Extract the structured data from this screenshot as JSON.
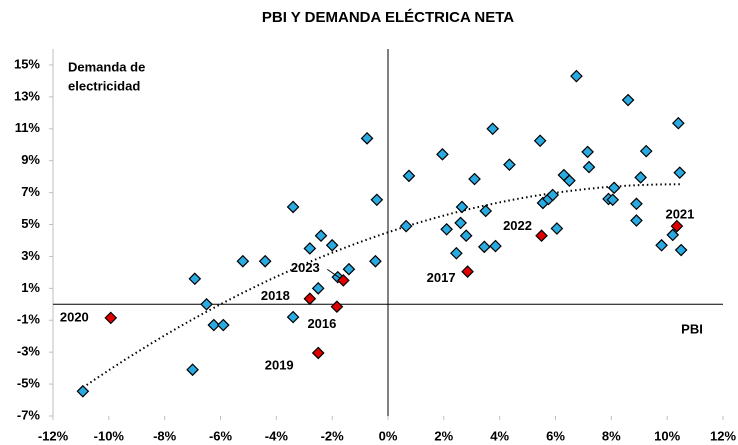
{
  "chart_data": {
    "type": "scatter",
    "title": "PBI Y DEMANDA ELÉCTRICA NETA",
    "xlabel": "PBI",
    "ylabel": [
      "Demanda de",
      "electricidad"
    ],
    "xlim": [
      -12,
      12
    ],
    "xticks": [
      {
        "value": -12,
        "label": "-12%"
      },
      {
        "value": -10,
        "label": "-10%"
      },
      {
        "value": -8,
        "label": "-8%"
      },
      {
        "value": -6,
        "label": "-6%"
      },
      {
        "value": -4,
        "label": "-4%"
      },
      {
        "value": -2,
        "label": "-2%"
      },
      {
        "value": 0,
        "label": "0%"
      },
      {
        "value": 2,
        "label": "2%"
      },
      {
        "value": 4,
        "label": "4%"
      },
      {
        "value": 6,
        "label": "6%"
      },
      {
        "value": 8,
        "label": "8%"
      },
      {
        "value": 10,
        "label": "10%"
      },
      {
        "value": 12,
        "label": "12%"
      }
    ],
    "ylim": [
      -7,
      16
    ],
    "yticks": [
      {
        "value": -7,
        "label": "-7%"
      },
      {
        "value": -5,
        "label": "-5%"
      },
      {
        "value": -3,
        "label": "-3%"
      },
      {
        "value": -1,
        "label": "-1%"
      },
      {
        "value": 1,
        "label": "1%"
      },
      {
        "value": 3,
        "label": "3%"
      },
      {
        "value": 5,
        "label": "5%"
      },
      {
        "value": 7,
        "label": "7%"
      },
      {
        "value": 9,
        "label": "9%"
      },
      {
        "value": 11,
        "label": "11%"
      },
      {
        "value": 13,
        "label": "13%"
      },
      {
        "value": 15,
        "label": "15%"
      }
    ],
    "series": [
      {
        "color": "#29abe2",
        "x": [
          -10.93,
          -6.92,
          -7.0,
          -6.5,
          -6.24,
          -5.9,
          -5.2,
          -4.4,
          -3.4,
          -3.4,
          -2.8,
          -2.4,
          -2.5,
          -2.0,
          -1.8,
          -1.4,
          -0.75,
          -0.4,
          -0.45,
          0.65,
          0.75,
          1.95,
          2.1,
          2.45,
          2.6,
          2.65,
          2.8,
          3.1,
          3.45,
          3.5,
          3.75,
          3.85,
          4.35,
          5.45,
          5.55,
          5.75,
          5.9,
          6.05,
          6.3,
          6.5,
          6.75,
          7.15,
          7.2,
          7.9,
          8.05,
          8.1,
          8.6,
          8.9,
          8.9,
          9.05,
          9.25,
          9.8,
          10.2,
          10.4,
          10.45,
          10.5
        ],
        "values": [
          -5.45,
          1.6,
          -4.1,
          0,
          -1.3,
          -1.3,
          2.7,
          2.7,
          6.1,
          -0.8,
          3.5,
          4.3,
          1.0,
          3.7,
          1.7,
          2.2,
          10.4,
          6.55,
          2.7,
          4.9,
          8.05,
          9.4,
          4.7,
          3.2,
          5.1,
          6.1,
          4.3,
          7.85,
          3.6,
          5.85,
          11.0,
          3.65,
          8.75,
          10.25,
          6.35,
          6.6,
          6.85,
          4.75,
          8.1,
          7.75,
          14.3,
          9.55,
          8.6,
          6.6,
          6.55,
          7.3,
          12.8,
          6.3,
          5.25,
          7.95,
          9.6,
          3.7,
          4.35,
          11.35,
          8.25,
          3.4
        ]
      },
      {
        "color": "#e00000",
        "x": [
          -9.93,
          -2.8,
          -1.83,
          -2.5,
          -1.6,
          2.85,
          5.5,
          10.35
        ],
        "values": [
          -0.85,
          0.35,
          -0.15,
          -3.05,
          1.5,
          2.05,
          4.3,
          4.9
        ],
        "labels": [
          "2020",
          "2018",
          "2016",
          "2019",
          "2023",
          "2017",
          "2022",
          "2021"
        ]
      }
    ],
    "trendline": {
      "type": "polynomial",
      "order": 2,
      "style": "dotted"
    }
  }
}
